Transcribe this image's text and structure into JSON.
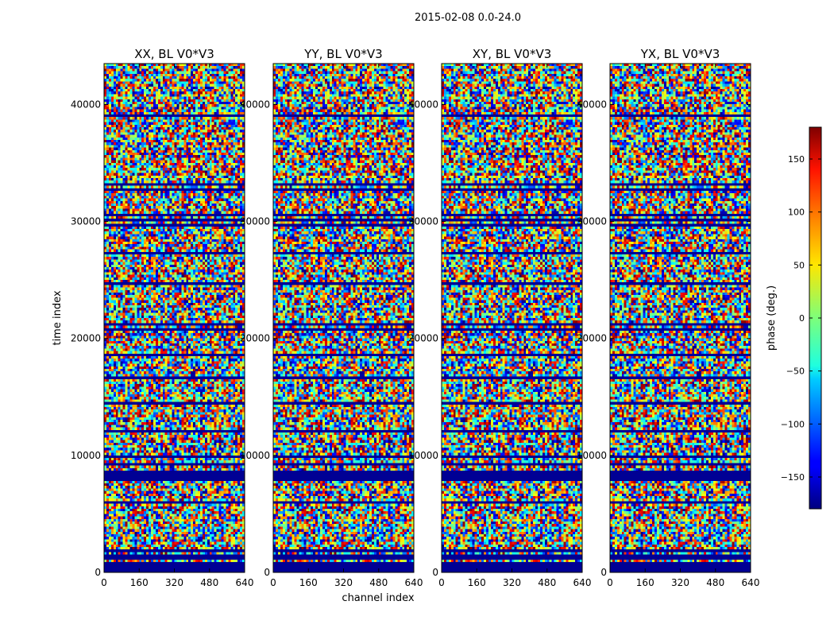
{
  "figure": {
    "suptitle": "2015-02-08 0.0-24.0"
  },
  "chart_data": {
    "type": "heatmap",
    "x_label": "channel index",
    "y_label": "time index",
    "x_range": [
      0,
      640
    ],
    "y_range": [
      0,
      43500
    ],
    "x_ticks": [
      0,
      160,
      320,
      480,
      640
    ],
    "y_ticks": [
      0,
      10000,
      20000,
      30000,
      40000
    ],
    "panels": [
      {
        "title": "XX, BL V0*V3",
        "polarization": "XX",
        "baseline": "V0*V3"
      },
      {
        "title": "YY, BL V0*V3",
        "polarization": "YY",
        "baseline": "V0*V3"
      },
      {
        "title": "XY, BL V0*V3",
        "polarization": "XY",
        "baseline": "V0*V3"
      },
      {
        "title": "YX, BL V0*V3",
        "polarization": "YX",
        "baseline": "V0*V3"
      }
    ],
    "colorbar": {
      "label": "phase (deg.)",
      "range": [
        -180,
        180
      ],
      "ticks": [
        -150,
        -100,
        -50,
        0,
        50,
        100,
        150
      ],
      "tick_labels": [
        "−150",
        "−100",
        "−50",
        "0",
        "50",
        "100",
        "150"
      ],
      "colormap": "jet"
    },
    "description": "Phase waterfall, mostly noisy phase with horizontal flagged bands near -180 deg"
  }
}
